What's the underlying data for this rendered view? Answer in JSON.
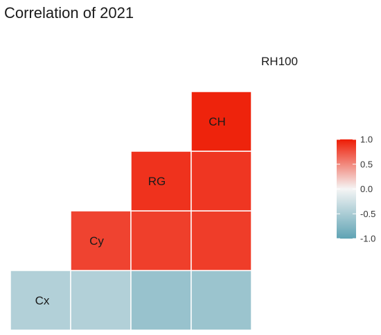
{
  "chart_data": {
    "type": "heatmap",
    "title": "Correlation of 2021",
    "variables": [
      "Cx",
      "Cy",
      "RG",
      "CH",
      "RH100"
    ],
    "cells": [
      {
        "row": "Cx",
        "col": "Cx",
        "value": -0.45
      },
      {
        "row": "Cx",
        "col": "Cy",
        "value": -0.45
      },
      {
        "row": "Cx",
        "col": "RG",
        "value": -0.62
      },
      {
        "row": "Cx",
        "col": "CH",
        "value": -0.6
      },
      {
        "row": "Cy",
        "col": "Cy",
        "value": 0.82
      },
      {
        "row": "Cy",
        "col": "RG",
        "value": 0.84
      },
      {
        "row": "Cy",
        "col": "CH",
        "value": 0.85
      },
      {
        "row": "RG",
        "col": "RG",
        "value": 0.9
      },
      {
        "row": "RG",
        "col": "CH",
        "value": 0.88
      },
      {
        "row": "CH",
        "col": "CH",
        "value": 0.97
      }
    ],
    "legend": {
      "ticks": [
        "1.0",
        "0.5",
        "0.0",
        "-0.5",
        "-1.0"
      ],
      "range": [
        -1,
        1
      ],
      "placement": "right"
    },
    "colors": {
      "low": "#5fa3b4",
      "mid": "#f5f5f5",
      "high": "#ee1c05"
    }
  }
}
